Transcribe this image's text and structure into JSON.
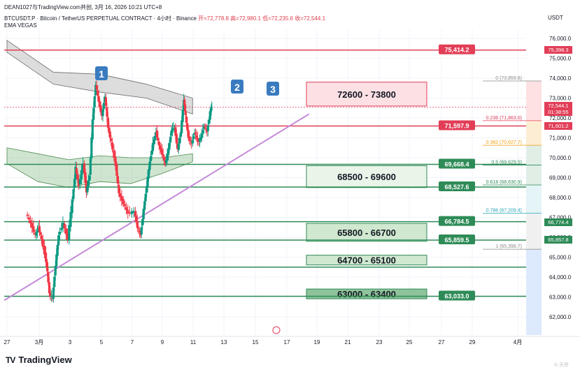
{
  "header": {
    "title": "DEAN1027与TradingView.com共创, 3月 16, 2026 10:21 UTC+8",
    "symbol_line": "BTCUSDT.P · Bitcoin / TetherUS PERPETUAL CONTRACT · 4小时 · Binance",
    "ohlc": "开=72,778.8  高=72,980.1  低=72,235.6  收=72,544.1",
    "indicator": "EMA VEGAS",
    "currency": "USDT"
  },
  "footer": {
    "brand": "TradingView",
    "watermark": "© 天外"
  },
  "colors": {
    "up": "#089981",
    "down": "#f23645",
    "trend": "#c58ad8",
    "red_level": "#e23e57",
    "green_level": "#2e8b57"
  },
  "chart_data": {
    "type": "candlestick",
    "x_ticks": [
      "27",
      "3月",
      "3",
      "5",
      "7",
      "9",
      "11",
      "13",
      "15",
      "17",
      "19",
      "21",
      "23",
      "25",
      "27",
      "29",
      "4月"
    ],
    "y_ticks": [
      "76,000.0",
      "75,000.0",
      "74,000.0",
      "73,000.0",
      "72,000.0",
      "71,000.0",
      "70,000.0",
      "69,000.0",
      "68,000.0",
      "67,000.0",
      "66,000.0",
      "65,000.0",
      "64,000.0",
      "63,000.0",
      "62,000.0"
    ],
    "ylim": [
      61500,
      76500
    ],
    "price_path": [
      [
        0,
        67200
      ],
      [
        0.3,
        66700
      ],
      [
        0.6,
        66100
      ],
      [
        0.8,
        66500
      ],
      [
        1.0,
        65900
      ],
      [
        1.3,
        64800
      ],
      [
        1.5,
        63200
      ],
      [
        1.7,
        62900
      ],
      [
        1.9,
        64600
      ],
      [
        2.1,
        66100
      ],
      [
        2.4,
        66700
      ],
      [
        2.7,
        65900
      ],
      [
        3.0,
        67900
      ],
      [
        3.2,
        69500
      ],
      [
        3.4,
        68600
      ],
      [
        3.7,
        69700
      ],
      [
        3.9,
        68300
      ],
      [
        4.1,
        69100
      ],
      [
        4.3,
        71900
      ],
      [
        4.5,
        73700
      ],
      [
        4.7,
        72800
      ],
      [
        4.9,
        72100
      ],
      [
        5.1,
        73100
      ],
      [
        5.3,
        71500
      ],
      [
        5.5,
        70800
      ],
      [
        5.8,
        69600
      ],
      [
        6.0,
        68200
      ],
      [
        6.3,
        67700
      ],
      [
        6.6,
        67200
      ],
      [
        7.0,
        67300
      ],
      [
        7.2,
        66500
      ],
      [
        7.4,
        66100
      ],
      [
        7.6,
        67400
      ],
      [
        7.8,
        68600
      ],
      [
        8.0,
        69800
      ],
      [
        8.2,
        70700
      ],
      [
        8.4,
        71300
      ],
      [
        8.6,
        70600
      ],
      [
        8.8,
        70200
      ],
      [
        9.0,
        69700
      ],
      [
        9.2,
        70400
      ],
      [
        9.4,
        71400
      ],
      [
        9.6,
        71500
      ],
      [
        9.8,
        70400
      ],
      [
        10.0,
        71300
      ],
      [
        10.2,
        72900
      ],
      [
        10.3,
        72100
      ],
      [
        10.5,
        71000
      ],
      [
        10.7,
        70700
      ],
      [
        10.9,
        71300
      ],
      [
        11.1,
        70800
      ],
      [
        11.3,
        71000
      ],
      [
        11.5,
        71600
      ],
      [
        11.7,
        71300
      ],
      [
        11.9,
        72300
      ],
      [
        12.0,
        72544
      ]
    ],
    "ema_upper_band_top": [
      [
        0,
        75900
      ],
      [
        3,
        74300
      ],
      [
        6,
        74200
      ],
      [
        9,
        73700
      ],
      [
        12,
        73000
      ]
    ],
    "ema_upper_band_bottom": [
      [
        0,
        75300
      ],
      [
        3,
        73700
      ],
      [
        6,
        73300
      ],
      [
        9,
        73000
      ],
      [
        12,
        72200
      ]
    ],
    "ema_lower_band_top": [
      [
        0,
        70500
      ],
      [
        2,
        70200
      ],
      [
        4,
        69900
      ],
      [
        6,
        70100
      ],
      [
        8,
        70000
      ],
      [
        10,
        70000
      ],
      [
        12,
        70200
      ]
    ],
    "ema_lower_band_bottom": [
      [
        0,
        69700
      ],
      [
        2,
        68800
      ],
      [
        4,
        68500
      ],
      [
        6,
        68800
      ],
      [
        8,
        68700
      ],
      [
        10,
        69200
      ],
      [
        12,
        69800
      ]
    ],
    "trendline": [
      [
        0,
        62900
      ],
      [
        19,
        72200
      ]
    ],
    "wave_labels": [
      "1",
      "2",
      "3"
    ],
    "horizontal_levels": [
      {
        "price": 75414.2,
        "label": "75,414.2",
        "color": "red"
      },
      {
        "price": 71597.9,
        "label": "71,597.9",
        "color": "red"
      },
      {
        "price": 69668.4,
        "label": "69,668.4",
        "color": "green"
      },
      {
        "price": 68527.6,
        "label": "68,527.6",
        "color": "green"
      },
      {
        "price": 66784.5,
        "label": "66,784.5",
        "color": "green"
      },
      {
        "price": 65859.5,
        "label": "65,859.5",
        "color": "green"
      },
      {
        "price": 64500,
        "label": "",
        "color": "green"
      },
      {
        "price": 63033.0,
        "label": "63,033.0",
        "color": "green"
      }
    ],
    "zones": [
      {
        "label": "72600 - 73800",
        "top": 73800,
        "bottom": 72600,
        "kind": "resistance"
      },
      {
        "label": "68500 - 69600",
        "top": 69600,
        "bottom": 68500,
        "kind": "support-light"
      },
      {
        "label": "65800 - 66700",
        "top": 66700,
        "bottom": 65800,
        "kind": "support"
      },
      {
        "label": "64700 - 65100",
        "top": 65100,
        "bottom": 64700,
        "kind": "support"
      },
      {
        "label": "63000 - 63400",
        "top": 63400,
        "bottom": 63000,
        "kind": "support-dark"
      }
    ],
    "fib_levels": [
      {
        "label": "0 (73,859.8)",
        "price": 73859.8
      },
      {
        "label": "0.236 (71,863.0)",
        "price": 71863.0
      },
      {
        "label": "0.382 (70,627.7)",
        "price": 70627.7
      },
      {
        "label": "0.5 (69,629.5)",
        "price": 69629.5
      },
      {
        "label": "0.618 (68,630.9)",
        "price": 68630.9
      },
      {
        "label": "0.786 (67,209.4)",
        "price": 67209.4
      },
      {
        "label": "1 (65,398.7)",
        "price": 65398.7
      }
    ],
    "right_price_tags": [
      {
        "label": "75,398.3",
        "price": 75398.3
      },
      {
        "label": "72,544.1",
        "price": 72544.1
      },
      {
        "label": "01:38:55",
        "price": 72280
      },
      {
        "label": "71,601.2",
        "price": 71601.2
      },
      {
        "label": "66,774.4",
        "price": 66774.4
      },
      {
        "label": "65,857.8",
        "price": 65857.8
      }
    ]
  }
}
